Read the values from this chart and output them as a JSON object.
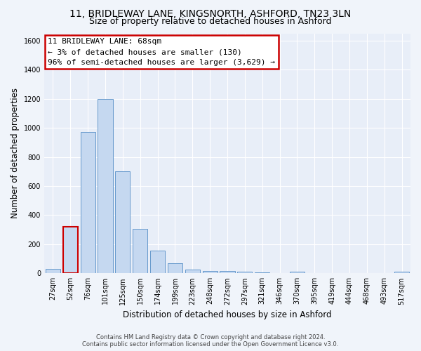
{
  "title": "11, BRIDLEWAY LANE, KINGSNORTH, ASHFORD, TN23 3LN",
  "subtitle": "Size of property relative to detached houses in Ashford",
  "xlabel": "Distribution of detached houses by size in Ashford",
  "ylabel": "Number of detached properties",
  "categories": [
    "27sqm",
    "52sqm",
    "76sqm",
    "101sqm",
    "125sqm",
    "150sqm",
    "174sqm",
    "199sqm",
    "223sqm",
    "248sqm",
    "272sqm",
    "297sqm",
    "321sqm",
    "346sqm",
    "370sqm",
    "395sqm",
    "419sqm",
    "444sqm",
    "468sqm",
    "493sqm",
    "517sqm"
  ],
  "values": [
    30,
    320,
    970,
    1200,
    700,
    305,
    155,
    70,
    25,
    18,
    15,
    10,
    8,
    0,
    12,
    0,
    0,
    0,
    0,
    0,
    12
  ],
  "bar_color": "#c5d8f0",
  "bar_edge_color": "#6699cc",
  "highlight_bar_index": 1,
  "highlight_edge_color": "#cc0000",
  "annotation_lines": [
    "11 BRIDLEWAY LANE: 68sqm",
    "← 3% of detached houses are smaller (130)",
    "96% of semi-detached houses are larger (3,629) →"
  ],
  "annotation_box_facecolor": "#ffffff",
  "annotation_box_edgecolor": "#cc0000",
  "ylim": [
    0,
    1650
  ],
  "yticks": [
    0,
    200,
    400,
    600,
    800,
    1000,
    1200,
    1400,
    1600
  ],
  "footer_line1": "Contains HM Land Registry data © Crown copyright and database right 2024.",
  "footer_line2": "Contains public sector information licensed under the Open Government Licence v3.0.",
  "bg_color": "#f0f4fa",
  "plot_bg_color": "#e8eef8",
  "grid_color": "#ffffff",
  "title_fontsize": 10,
  "subtitle_fontsize": 9,
  "tick_fontsize": 7,
  "ylabel_fontsize": 8.5,
  "xlabel_fontsize": 8.5,
  "annotation_fontsize": 8,
  "footer_fontsize": 6
}
